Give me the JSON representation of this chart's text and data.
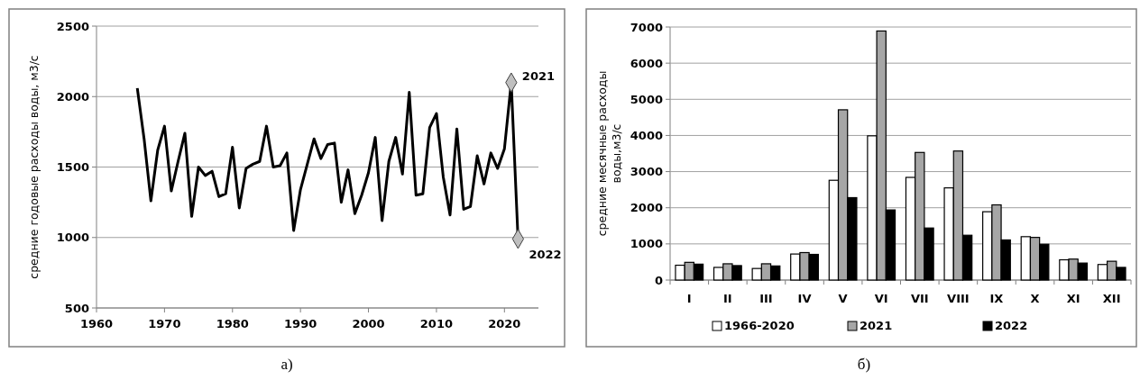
{
  "chart_data": [
    {
      "type": "line",
      "ylabel": "средние годовые расходы воды, м3/с",
      "xlim": [
        1960,
        2025
      ],
      "xticks": [
        1960,
        1970,
        1980,
        1990,
        2000,
        2010,
        2020
      ],
      "ylim": [
        500,
        2500
      ],
      "yticks": [
        500,
        1000,
        1500,
        2000,
        2500
      ],
      "grid": "y",
      "x": [
        1966,
        1967,
        1968,
        1969,
        1970,
        1971,
        1972,
        1973,
        1974,
        1975,
        1976,
        1977,
        1978,
        1979,
        1980,
        1981,
        1982,
        1983,
        1984,
        1985,
        1986,
        1987,
        1988,
        1989,
        1990,
        1991,
        1992,
        1993,
        1994,
        1995,
        1996,
        1997,
        1998,
        1999,
        2000,
        2001,
        2002,
        2003,
        2004,
        2005,
        2006,
        2007,
        2008,
        2009,
        2010,
        2011,
        2012,
        2013,
        2014,
        2015,
        2016,
        2017,
        2018,
        2019,
        2020,
        2021,
        2022
      ],
      "series": [
        {
          "type": "line",
          "color": "#000000",
          "marker": "none",
          "line_style": "solid",
          "values": [
            2060,
            1700,
            1260,
            1620,
            1790,
            1330,
            1540,
            1740,
            1150,
            1500,
            1440,
            1470,
            1290,
            1310,
            1640,
            1210,
            1490,
            1520,
            1540,
            1790,
            1500,
            1510,
            1600,
            1050,
            1340,
            1520,
            1700,
            1560,
            1660,
            1670,
            1250,
            1480,
            1170,
            1300,
            1460,
            1710,
            1120,
            1540,
            1710,
            1450,
            2030,
            1300,
            1310,
            1780,
            1880,
            1430,
            1160,
            1770,
            1200,
            1220,
            1580,
            1380,
            1600,
            1490,
            1630,
            2100,
            990
          ]
        },
        {
          "type": "scatter",
          "color": "#bfbfbf",
          "marker": "diamond",
          "x": [
            2021,
            2022
          ],
          "values": [
            2100,
            990
          ]
        }
      ],
      "annotations": [
        {
          "text": "2021",
          "x": 2021,
          "y": 2100
        },
        {
          "text": "2022",
          "x": 2022,
          "y": 990
        },
        "а)"
      ]
    },
    {
      "type": "bar",
      "ylabel": "средние месячные расходы воды,м3/с",
      "categories": [
        "I",
        "II",
        "III",
        "IV",
        "V",
        "VI",
        "VII",
        "VIII",
        "IX",
        "X",
        "XI",
        "XII"
      ],
      "ylim": [
        0,
        7000
      ],
      "yticks": [
        0,
        1000,
        2000,
        3000,
        4000,
        5000,
        6000,
        7000
      ],
      "grid": "y",
      "legend": "bottom",
      "series": [
        {
          "name": "1966-2020",
          "color": "#ffffff",
          "values": [
            410,
            350,
            320,
            720,
            2760,
            3990,
            2840,
            2550,
            1890,
            1200,
            560,
            430
          ]
        },
        {
          "name": "2021",
          "color": "#a6a6a6",
          "values": [
            490,
            450,
            450,
            760,
            4710,
            6890,
            3530,
            3570,
            2080,
            1180,
            580,
            520
          ]
        },
        {
          "name": "2022",
          "color": "#000000",
          "values": [
            440,
            400,
            390,
            710,
            2280,
            1940,
            1440,
            1240,
            1110,
            990,
            470,
            350
          ]
        }
      ],
      "annotations": [
        "б)"
      ]
    }
  ]
}
